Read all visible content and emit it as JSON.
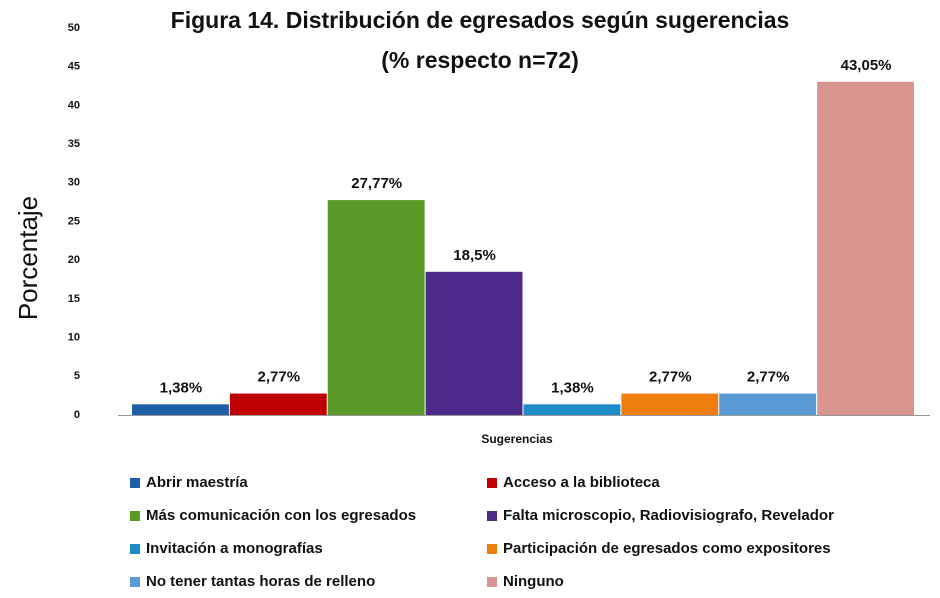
{
  "chart_data": {
    "type": "bar",
    "title": "Figura 14. Distribución de egresados según sugerencias",
    "subtitle": "(% respecto n=72)",
    "y_label": "Porcentaje",
    "x_label": "Sugerencias",
    "categories": [
      null
    ],
    "series": [
      {
        "name": "Abrir maestría",
        "color": "#1f5fa8",
        "values": [
          1.38
        ],
        "value_labels": [
          "1,38%"
        ]
      },
      {
        "name": "Acceso a la biblioteca",
        "color": "#c00000",
        "values": [
          2.77
        ],
        "value_labels": [
          "2,77%"
        ]
      },
      {
        "name": "Más comunicación con los egresados",
        "color": "#5a9a28",
        "values": [
          27.77
        ],
        "value_labels": [
          "27,77%"
        ]
      },
      {
        "name": "Falta microscopio, Radiovisiografo, Revelador",
        "color": "#4b2a8a",
        "values": [
          18.5
        ],
        "value_labels": [
          "18,5%"
        ]
      },
      {
        "name": "Invitación a monografías",
        "color": "#1e8ac8",
        "values": [
          1.38
        ],
        "value_labels": [
          "1,38%"
        ]
      },
      {
        "name": "Participación de egresados como expositores",
        "color": "#f07d10",
        "values": [
          2.77
        ],
        "value_labels": [
          "2,77%"
        ]
      },
      {
        "name": "No tener tantas horas de relleno",
        "color": "#5b9bd5",
        "values": [
          2.77
        ],
        "value_labels": [
          "2,77%"
        ]
      },
      {
        "name": "Ninguno",
        "color": "#d99590",
        "values": [
          43.05
        ],
        "value_labels": [
          "43,05%"
        ]
      }
    ],
    "ylim": [
      0,
      50
    ],
    "yticks": [
      0,
      5,
      10,
      15,
      20,
      25,
      30,
      35,
      40,
      45,
      50
    ],
    "legend": "bottom"
  }
}
